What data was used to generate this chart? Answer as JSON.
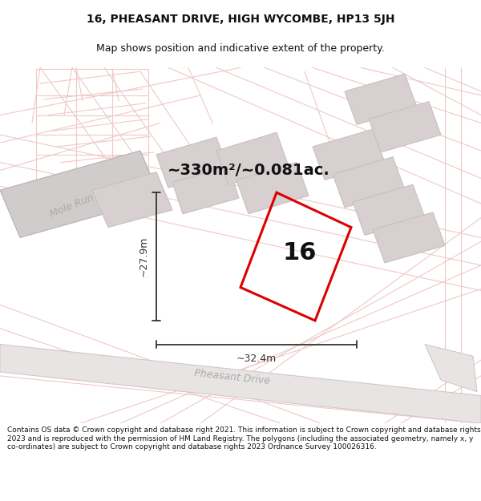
{
  "title_line1": "16, PHEASANT DRIVE, HIGH WYCOMBE, HP13 5JH",
  "title_line2": "Map shows position and indicative extent of the property.",
  "area_text": "~330m²/~0.081ac.",
  "label_16": "16",
  "dim_height": "~27.9m",
  "dim_width": "~32.4m",
  "street_mole_run": "Mole Run",
  "street_pheasant": "Pheasant Drive",
  "footer_text": "Contains OS data © Crown copyright and database right 2021. This information is subject to Crown copyright and database rights 2023 and is reproduced with the permission of HM Land Registry. The polygons (including the associated geometry, namely x, y co-ordinates) are subject to Crown copyright and database rights 2023 Ordnance Survey 100026316.",
  "bg_color": "#ffffff",
  "map_bg": "#ffffff",
  "road_line_color": "#f0c8c8",
  "road_fill_color": "#e8e0e0",
  "building_color": "#d8d0d0",
  "building_edge": "#c8c0c0",
  "mole_run_fill": "#d0cccc",
  "highlight_color": "#dd0000",
  "dim_color": "#333333",
  "street_label_color": "#aaaaaa",
  "title_color": "#111111",
  "footer_color": "#111111",
  "title_fontsize": 10,
  "subtitle_fontsize": 9,
  "area_fontsize": 14,
  "label16_fontsize": 22,
  "dim_fontsize": 9,
  "street_fontsize": 9,
  "footer_fontsize": 6.5
}
